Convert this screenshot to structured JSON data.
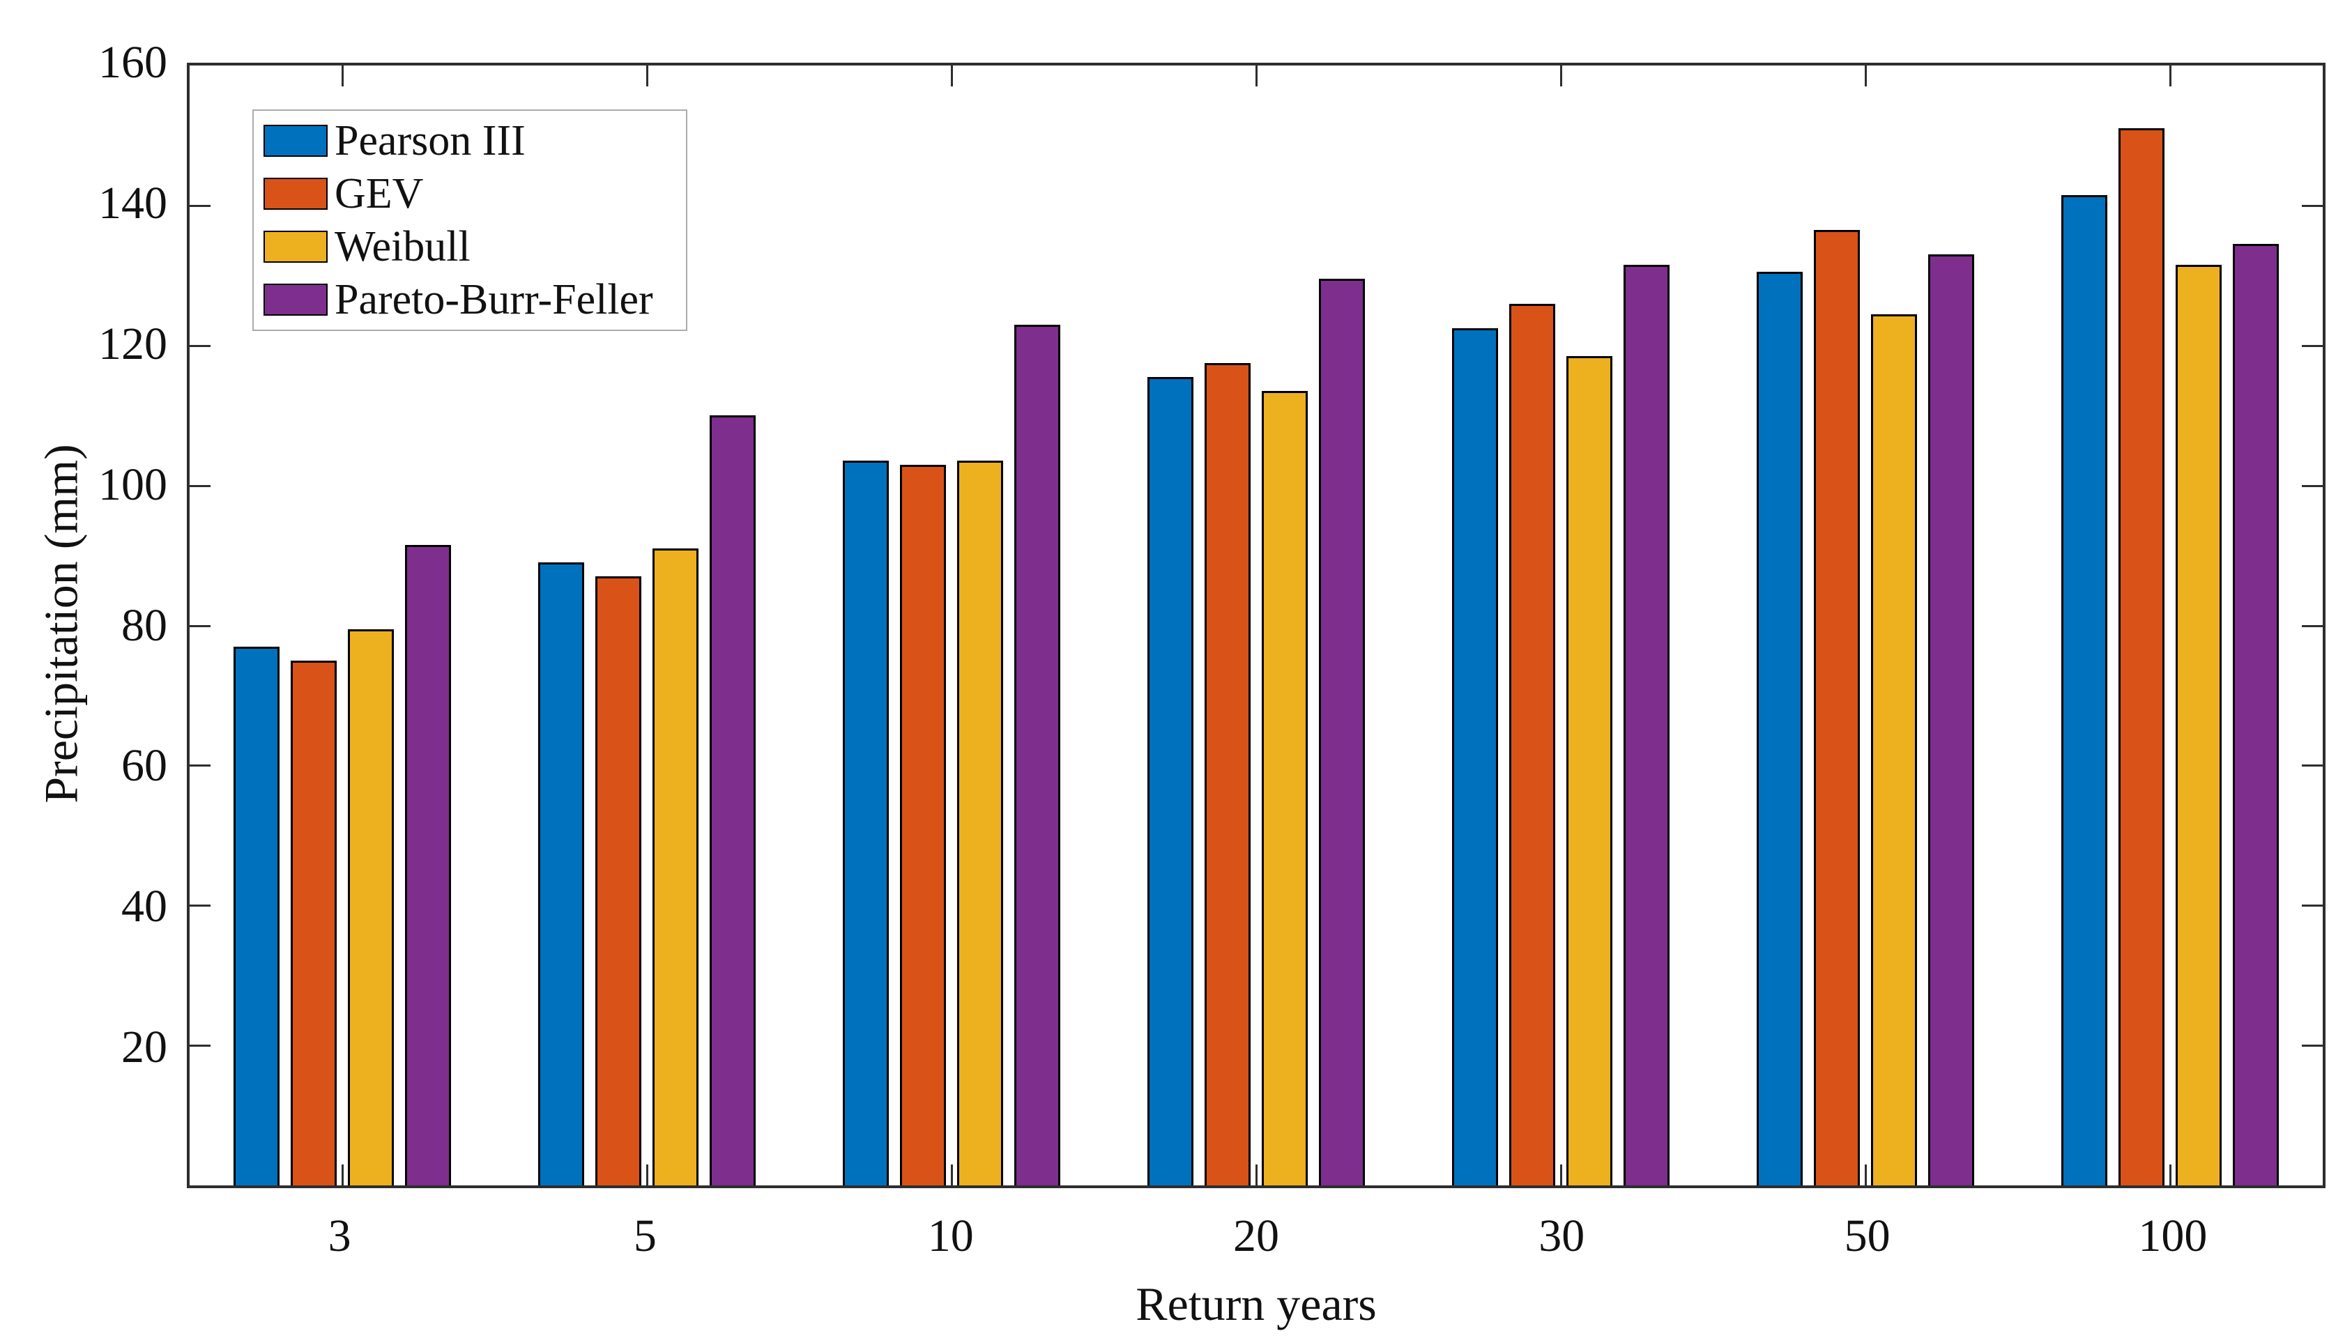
{
  "figure": {
    "background": "#ffffff",
    "axis_color": "#2e2e2e",
    "text_color": "#111111"
  },
  "chart_data": {
    "type": "bar",
    "title": "",
    "xlabel": "Return years",
    "ylabel": "Precipitation (mm)",
    "categories": [
      "3",
      "5",
      "10",
      "20",
      "30",
      "50",
      "100"
    ],
    "series": [
      {
        "name": "Pearson III",
        "color": "#0072BD",
        "values": [
          77,
          89,
          103.5,
          115.5,
          122.5,
          130.5,
          141.5
        ]
      },
      {
        "name": "GEV",
        "color": "#D95319",
        "values": [
          75,
          87,
          103,
          117.5,
          126,
          136.5,
          151
        ]
      },
      {
        "name": "Weibull",
        "color": "#EDB120",
        "values": [
          79.5,
          91,
          103.5,
          113.5,
          118.5,
          124.5,
          131.5
        ]
      },
      {
        "name": "Pareto-Burr-Feller",
        "color": "#7E2F8E",
        "values": [
          91.5,
          110,
          123,
          129.5,
          131.5,
          133,
          134.5
        ]
      }
    ],
    "ylim": [
      0,
      160
    ],
    "yticks": [
      20,
      40,
      60,
      80,
      100,
      120,
      140,
      160
    ],
    "grid": false,
    "legend_position": "top-left",
    "bar_edge_color": "#000000",
    "tick_direction": "in"
  }
}
